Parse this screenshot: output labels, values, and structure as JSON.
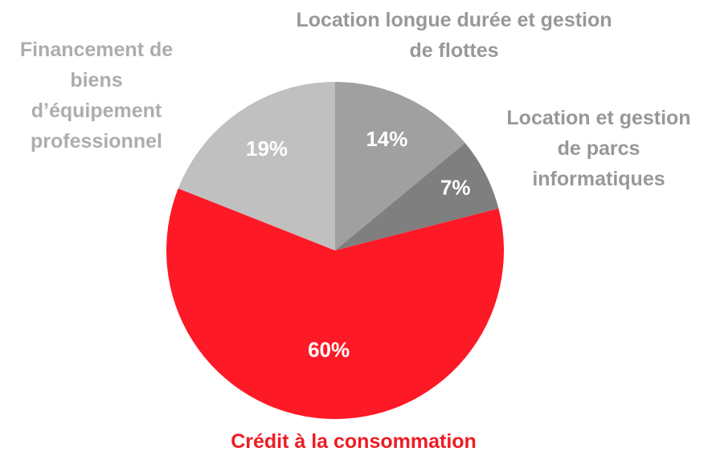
{
  "chart_data": {
    "type": "pie",
    "categories": [
      "Location longue durée et gestion de flottes",
      "Location et gestion de parcs informatiques",
      "Crédit à la consommation",
      "Financement de biens d’équipement professionnel"
    ],
    "values": [
      14,
      7,
      60,
      19
    ],
    "value_labels": [
      "14%",
      "7%",
      "60%",
      "19%"
    ],
    "colors": [
      "#a0a0a0",
      "#7f7f7f",
      "#fe1927",
      "#c0c0c0"
    ],
    "label_colors": [
      "#989898",
      "#989898",
      "#ee1c25",
      "#adadad"
    ]
  }
}
